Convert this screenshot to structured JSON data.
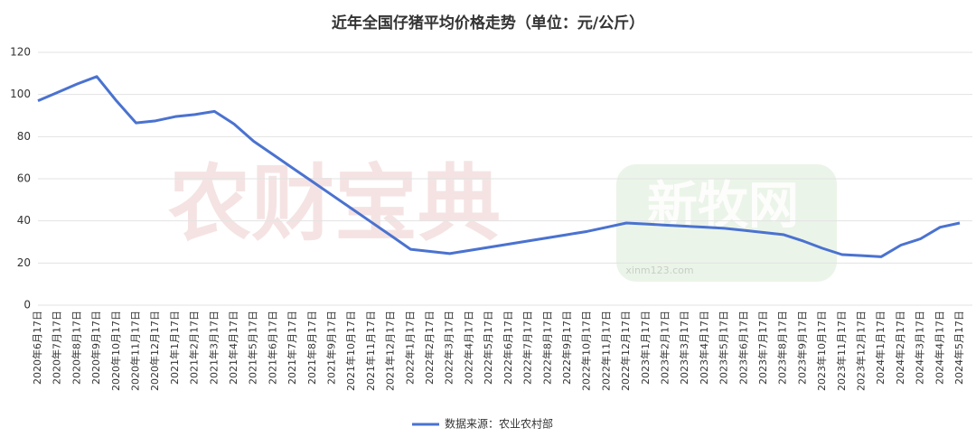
{
  "chart_data": {
    "type": "line",
    "title": "近年全国仔猪平均价格走势（单位：元/公斤）",
    "categories": [
      "2020年6月17日",
      "2020年7月17日",
      "2020年8月17日",
      "2020年9月17日",
      "2020年10月17日",
      "2020年11月17日",
      "2020年12月17日",
      "2021年1月17日",
      "2021年2月17日",
      "2021年3月17日",
      "2021年4月17日",
      "2021年5月17日",
      "2021年6月17日",
      "2021年7月17日",
      "2021年8月17日",
      "2021年9月17日",
      "2021年10月17日",
      "2021年11月17日",
      "2021年12月17日",
      "2022年1月17日",
      "2022年2月17日",
      "2022年3月17日",
      "2022年4月17日",
      "2022年5月17日",
      "2022年6月17日",
      "2022年7月17日",
      "2022年8月17日",
      "2022年9月17日",
      "2022年10月17日",
      "2022年11月17日",
      "2022年12月17日",
      "2023年1月17日",
      "2023年2月17日",
      "2023年3月17日",
      "2023年4月17日",
      "2023年5月17日",
      "2023年6月17日",
      "2023年7月17日",
      "2023年8月17日",
      "2023年9月17日",
      "2023年10月17日",
      "2023年11月17日",
      "2023年12月17日",
      "2024年1月17日",
      "2024年2月17日",
      "2024年3月17日",
      "2024年4月17日",
      "2024年5月17日"
    ],
    "series": [
      {
        "name": "数据来源：农业农村部",
        "color": "#4a72d0",
        "values": [
          97,
          101,
          105,
          108.5,
          97,
          86.5,
          87.5,
          89.5,
          90.5,
          92,
          86,
          77.8,
          71.4,
          65,
          58.6,
          52.2,
          45.8,
          39.4,
          33,
          26.5,
          25.5,
          24.5,
          26,
          27.5,
          29,
          30.5,
          32,
          33.5,
          35,
          37,
          39,
          38.5,
          38,
          37.5,
          37,
          36.5,
          35.5,
          34.5,
          33.5,
          30.5,
          27,
          24,
          23.5,
          23,
          28.5,
          31.5,
          37,
          39
        ]
      }
    ],
    "ylim": [
      0,
      120
    ],
    "yticks": [
      0,
      20,
      40,
      60,
      80,
      100,
      120
    ],
    "grid": true,
    "watermarks": [
      "农财宝典",
      "新牧网",
      "xinm123.com"
    ]
  }
}
